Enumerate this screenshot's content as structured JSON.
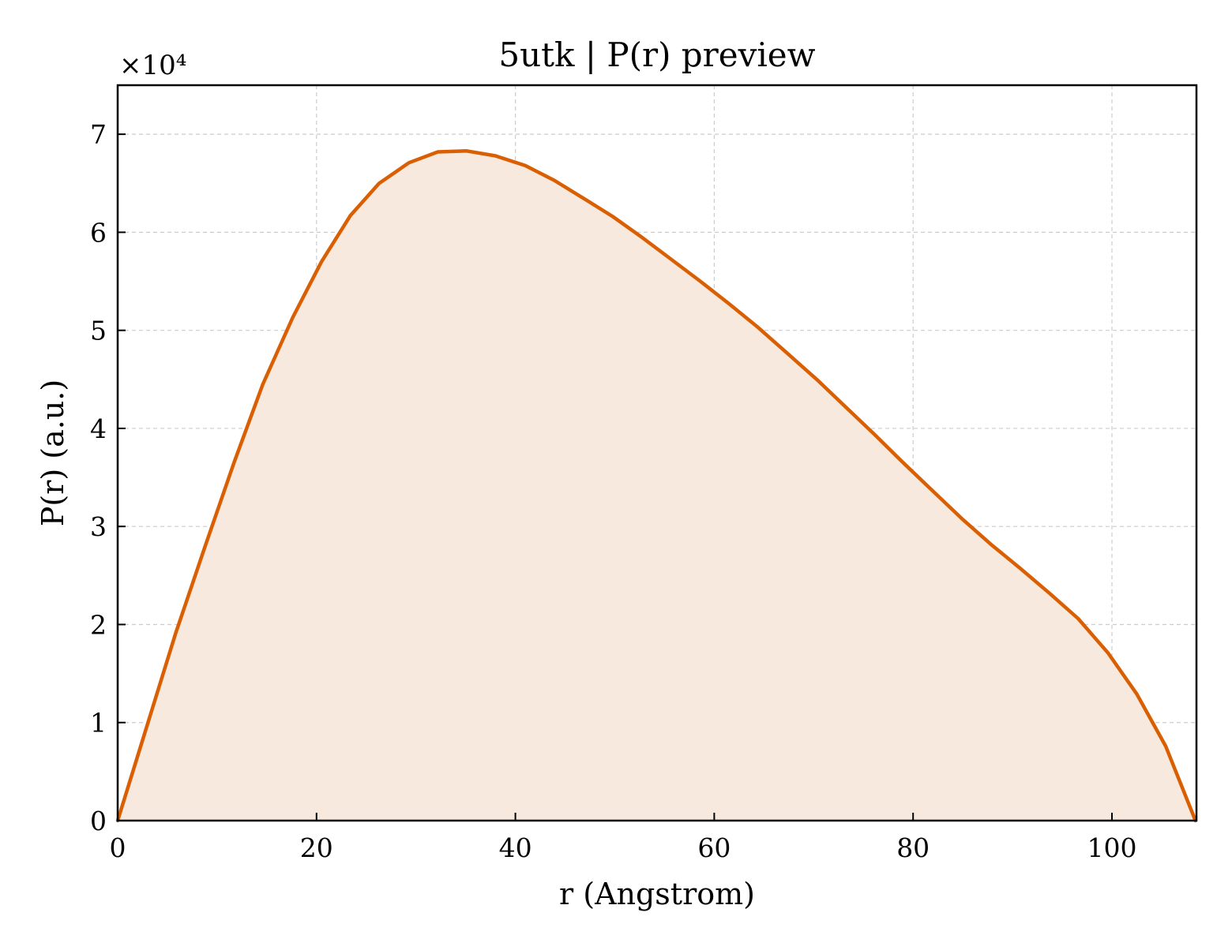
{
  "chart_data": {
    "type": "area",
    "title": "5utk | P(r) preview",
    "xlabel": "r (Angstrom)",
    "ylabel": "P(r) (a.u.)",
    "y_multiplier_label": "×10⁴",
    "y_scale_factor": 10000,
    "xlim": [
      0,
      108.5
    ],
    "ylim": [
      0,
      75000
    ],
    "x_ticks": [
      0,
      20,
      40,
      60,
      80,
      100
    ],
    "y_ticks": [
      0,
      10000,
      20000,
      30000,
      40000,
      50000,
      60000,
      70000
    ],
    "y_tick_labels": [
      "0",
      "1",
      "2",
      "3",
      "4",
      "5",
      "6",
      "7"
    ],
    "x_tick_labels": [
      "0",
      "20",
      "40",
      "60",
      "80",
      "100"
    ],
    "grid": true,
    "line_color": "#d95f02",
    "fill_color": "#f8e9de",
    "series": [
      {
        "x": [
          0,
          2.9,
          5.8,
          8.8,
          11.7,
          14.6,
          17.6,
          20.5,
          23.4,
          26.3,
          29.3,
          32.2,
          35.1,
          38.0,
          41.0,
          43.9,
          46.8,
          49.8,
          52.7,
          55.6,
          58.6,
          61.5,
          64.4,
          67.3,
          70.3,
          73.2,
          76.1,
          79.0,
          82.0,
          84.9,
          87.8,
          90.8,
          93.7,
          96.6,
          99.6,
          102.5,
          105.4,
          108.4
        ],
        "y": [
          0,
          9500,
          19000,
          28000,
          36500,
          44500,
          51300,
          57000,
          61700,
          65000,
          67100,
          68200,
          68300,
          67800,
          66800,
          65300,
          63500,
          61600,
          59500,
          57300,
          55000,
          52700,
          50300,
          47700,
          45000,
          42200,
          39400,
          36500,
          33600,
          30800,
          28200,
          25700,
          23200,
          20600,
          17100,
          12900,
          7600,
          0
        ]
      }
    ]
  }
}
